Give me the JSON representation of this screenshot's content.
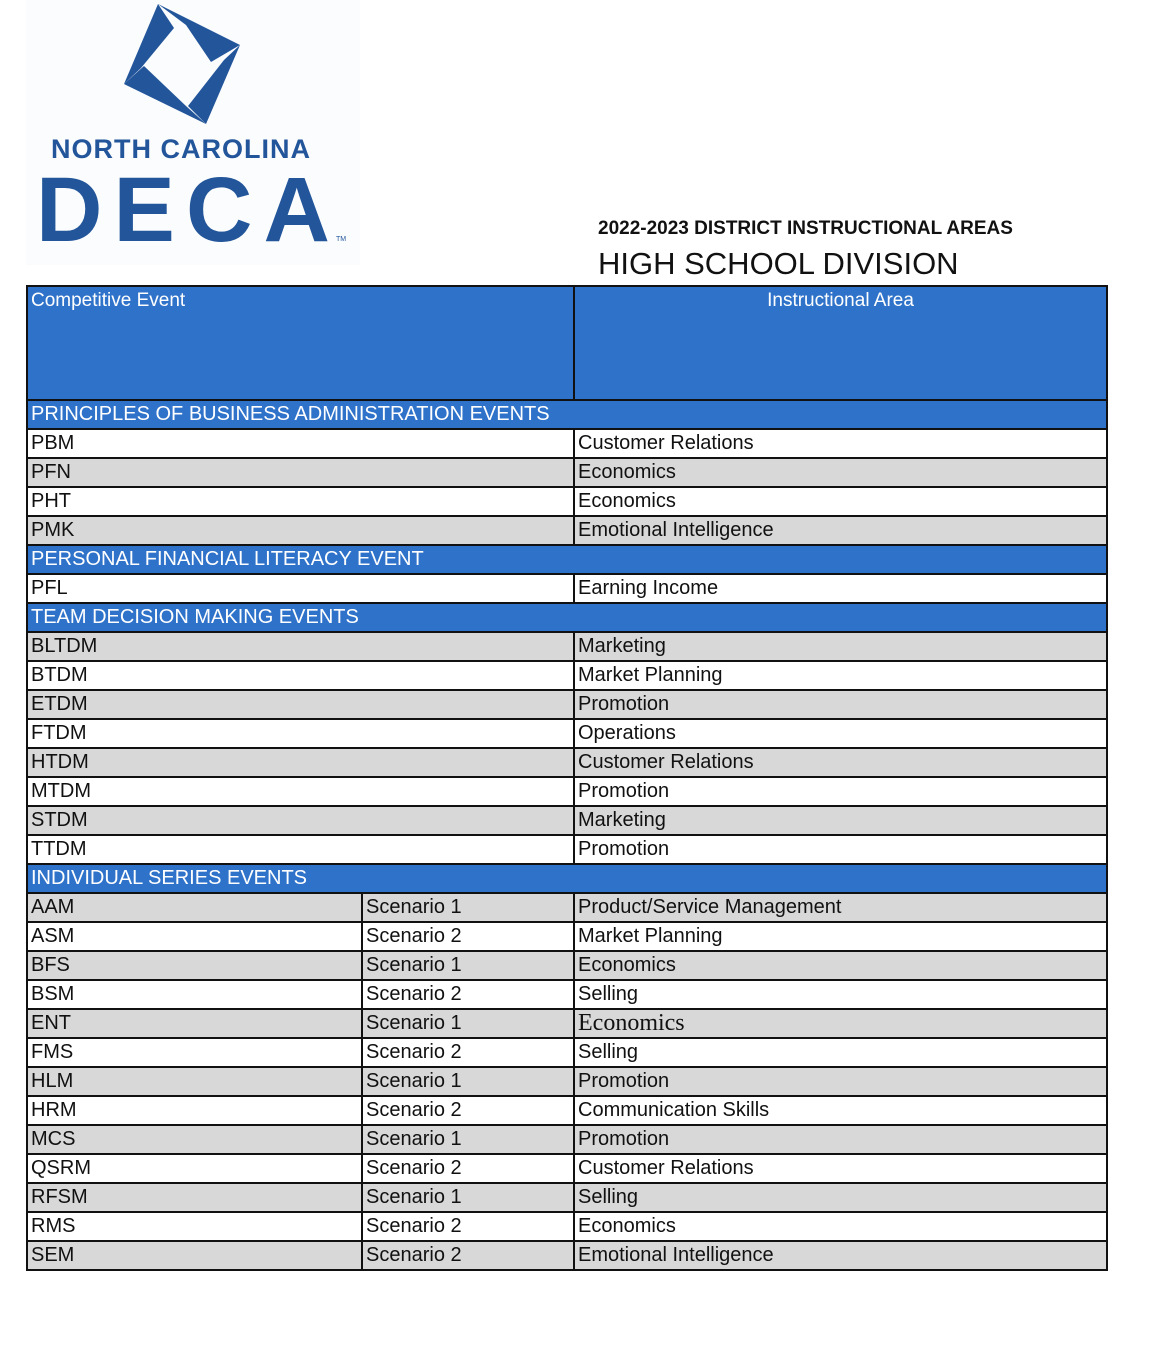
{
  "logo": {
    "line1": "NORTH CAROLINA",
    "line2": "DECA",
    "tm": "TM",
    "color": "#22559a"
  },
  "document": {
    "title": "2022-2023 DISTRICT INSTRUCTIONAL AREAS",
    "subtitle": "HIGH SCHOOL DIVISION"
  },
  "table": {
    "headers": {
      "event": "Competitive Event",
      "area": "Instructional Area"
    },
    "colors": {
      "header": "#2f72c9",
      "shaded": "#d8d8d8"
    },
    "sections": [
      {
        "title": "PRINCIPLES OF BUSINESS ADMINISTRATION EVENTS",
        "rows": [
          {
            "event": "PBM",
            "area": "Customer Relations"
          },
          {
            "event": "PFN",
            "area": "Economics"
          },
          {
            "event": "PHT",
            "area": "Economics"
          },
          {
            "event": "PMK",
            "area": "Emotional Intelligence"
          }
        ]
      },
      {
        "title": "PERSONAL FINANCIAL LITERACY EVENT",
        "rows": [
          {
            "event": "PFL",
            "area": "Earning Income"
          }
        ]
      },
      {
        "title": "TEAM DECISION MAKING EVENTS",
        "rows": [
          {
            "event": "BLTDM",
            "area": "Marketing"
          },
          {
            "event": "BTDM",
            "area": "Market Planning"
          },
          {
            "event": "ETDM",
            "area": "Promotion"
          },
          {
            "event": "FTDM",
            "area": "Operations"
          },
          {
            "event": "HTDM",
            "area": "Customer Relations"
          },
          {
            "event": "MTDM",
            "area": "Promotion"
          },
          {
            "event": "STDM",
            "area": "Marketing"
          },
          {
            "event": "TTDM",
            "area": "Promotion"
          }
        ]
      },
      {
        "title": "INDIVIDUAL SERIES EVENTS",
        "rows": [
          {
            "event": "AAM",
            "scenario": "Scenario 1",
            "area": "Product/Service Management"
          },
          {
            "event": "ASM",
            "scenario": "Scenario 2",
            "area": "Market Planning"
          },
          {
            "event": "BFS",
            "scenario": "Scenario 1",
            "area": "Economics"
          },
          {
            "event": "BSM",
            "scenario": "Scenario 2",
            "area": "Selling"
          },
          {
            "event": "ENT",
            "scenario": "Scenario 1",
            "area": "Economics"
          },
          {
            "event": "FMS",
            "scenario": "Scenario 2",
            "area": "Selling"
          },
          {
            "event": "HLM",
            "scenario": "Scenario 1",
            "area": "Promotion"
          },
          {
            "event": "HRM",
            "scenario": "Scenario 2",
            "area": "Communication Skills"
          },
          {
            "event": "MCS",
            "scenario": "Scenario 1",
            "area": "Promotion"
          },
          {
            "event": "QSRM",
            "scenario": "Scenario 2",
            "area": "Customer Relations"
          },
          {
            "event": "RFSM",
            "scenario": "Scenario 1",
            "area": "Selling"
          },
          {
            "event": "RMS",
            "scenario": "Scenario 2",
            "area": "Economics"
          },
          {
            "event": "SEM",
            "scenario": "Scenario 2",
            "area": "Emotional Intelligence"
          }
        ]
      }
    ]
  }
}
